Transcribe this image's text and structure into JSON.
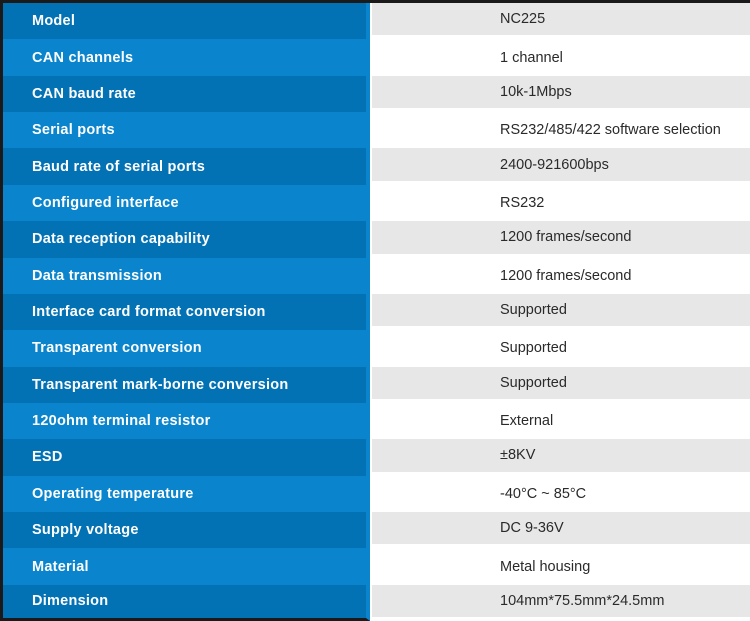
{
  "table": {
    "rows": [
      {
        "label": "Model",
        "value": "NC225"
      },
      {
        "label": "CAN channels",
        "value": "1 channel"
      },
      {
        "label": "CAN baud rate",
        "value": "10k-1Mbps"
      },
      {
        "label": "Serial ports",
        "value": "RS232/485/422 software selection"
      },
      {
        "label": "Baud rate of serial ports",
        "value": "2400-921600bps"
      },
      {
        "label": "Configured interface",
        "value": "RS232"
      },
      {
        "label": "Data reception capability",
        "value": "1200 frames/second"
      },
      {
        "label": "Data transmission",
        "value": "1200 frames/second"
      },
      {
        "label": "Interface card format conversion",
        "value": "Supported"
      },
      {
        "label": "Transparent conversion",
        "value": "Supported"
      },
      {
        "label": "Transparent mark-borne conversion",
        "value": "Supported"
      },
      {
        "label": "120ohm terminal resistor",
        "value": "External"
      },
      {
        "label": "ESD",
        "value": "±8KV"
      },
      {
        "label": "Operating temperature",
        "value": "-40°C ~ 85°C"
      },
      {
        "label": "Supply voltage",
        "value": "DC 9-36V"
      },
      {
        "label": "Material",
        "value": "Metal housing"
      },
      {
        "label": "Dimension",
        "value": "104mm*75.5mm*24.5mm"
      }
    ]
  },
  "colors": {
    "row_blue_dark": "#0272b5",
    "row_blue_light": "#0a85cd",
    "row_gray": "#e7e7e7",
    "row_white": "#ffffff",
    "label_text": "#ffffff",
    "value_text": "#2a2a2a",
    "frame_border": "#1a1a1a"
  }
}
